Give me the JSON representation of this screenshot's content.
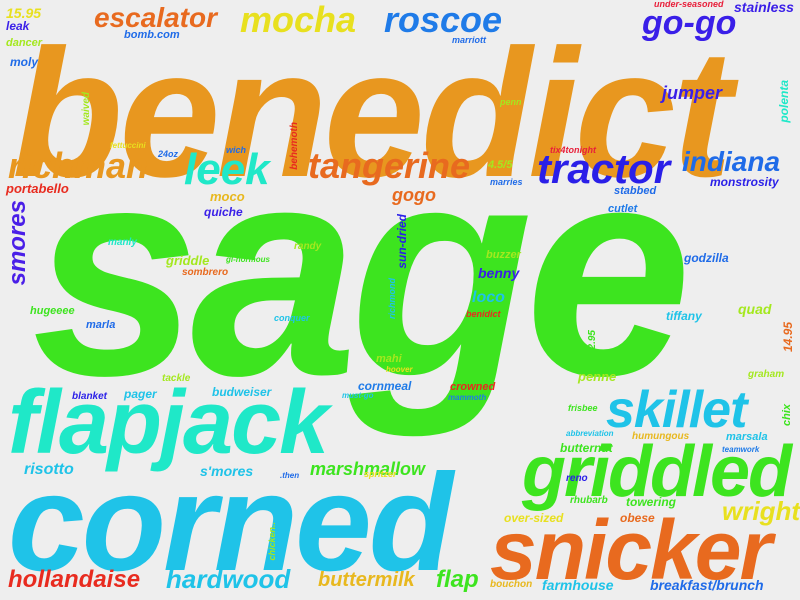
{
  "colors": {
    "background": "#eeeeee",
    "orange": "#e8971f",
    "green": "#3de41f",
    "cyan": "#1fc3e8",
    "teal": "#1fe8c8",
    "blue": "#1f6be8",
    "indigo": "#3a1fe8",
    "violet": "#6d1fe8",
    "red": "#e82b1f",
    "crimson": "#e81f3a",
    "dark_orange": "#e86a1f",
    "yellow": "#e8e01f",
    "lime": "#a4e81f",
    "gold": "#e8b81f"
  },
  "words": [
    {
      "text": "benedict",
      "color": "#e8971f"
    },
    {
      "text": "sage",
      "color": "#3de41f"
    },
    {
      "text": "corned",
      "color": "#1fc3e8"
    },
    {
      "text": "flapjack",
      "color": "#1fe8c8"
    },
    {
      "text": "snicker",
      "color": "#e86a1f"
    },
    {
      "text": "griddled",
      "color": "#3de41f"
    },
    {
      "text": "skillet",
      "color": "#1fc3e8"
    },
    {
      "text": "tractor",
      "color": "#2a1fe8"
    },
    {
      "text": "leek",
      "color": "#1fe8c8"
    },
    {
      "text": "tangerine",
      "color": "#e86a1f"
    },
    {
      "text": "richman",
      "color": "#e8971f"
    },
    {
      "text": "indiana",
      "color": "#1f6be8"
    },
    {
      "text": "mocha",
      "color": "#e8e01f"
    },
    {
      "text": "roscoe",
      "color": "#1f7be8"
    },
    {
      "text": "escalator",
      "color": "#e86a1f"
    },
    {
      "text": "go-go",
      "color": "#3a1fe8"
    },
    {
      "text": "hardwood",
      "color": "#1fc3e8"
    },
    {
      "text": "hollandaise",
      "color": "#e82b1f"
    },
    {
      "text": "buttermilk",
      "color": "#e8b81f"
    },
    {
      "text": "flap",
      "color": "#3de41f"
    },
    {
      "text": "wright",
      "color": "#e8e01f"
    },
    {
      "text": "marshmallow",
      "color": "#3de41f"
    },
    {
      "text": "smores",
      "color": "#4a1fe8"
    },
    {
      "text": "jumper",
      "color": "#3a1fe8"
    },
    {
      "text": "stainless",
      "color": "#3a1fe8"
    },
    {
      "text": "under-seasoned",
      "color": "#e81f3a"
    },
    {
      "text": "15.95",
      "color": "#e8e01f"
    },
    {
      "text": "leak",
      "color": "#3a1fe8"
    },
    {
      "text": "dancer",
      "color": "#a4e81f"
    },
    {
      "text": "moly",
      "color": "#1f6be8"
    },
    {
      "text": "bomb.com",
      "color": "#1f6be8"
    },
    {
      "text": "marriott",
      "color": "#1f6be8"
    },
    {
      "text": "waived",
      "color": "#a4e81f"
    },
    {
      "text": "penn",
      "color": "#a4e81f"
    },
    {
      "text": "polenta",
      "color": "#1fe8c8"
    },
    {
      "text": "fettuccini",
      "color": "#e8e01f"
    },
    {
      "text": "24oz",
      "color": "#1f6be8"
    },
    {
      "text": "wich",
      "color": "#1f6be8"
    },
    {
      "text": "behemoth",
      "color": "#e82b1f"
    },
    {
      "text": "4.5/5",
      "color": "#a4e81f"
    },
    {
      "text": "tix4tonight",
      "color": "#e81f3a"
    },
    {
      "text": "portabello",
      "color": "#e82b1f"
    },
    {
      "text": "marries",
      "color": "#1f6be8"
    },
    {
      "text": "monstrosity",
      "color": "#2a1fe8"
    },
    {
      "text": "gogo",
      "color": "#e86a1f"
    },
    {
      "text": "moco",
      "color": "#e8b81f"
    },
    {
      "text": "stabbed",
      "color": "#1f6be8"
    },
    {
      "text": "cutlet",
      "color": "#1f7be8"
    },
    {
      "text": "quiche",
      "color": "#3a1fe8"
    },
    {
      "text": "manly",
      "color": "#1fe8c8"
    },
    {
      "text": "gi-normous",
      "color": "#3de41f"
    },
    {
      "text": "randy",
      "color": "#a4e81f"
    },
    {
      "text": "sun-dried",
      "color": "#2a1fe8"
    },
    {
      "text": "buzzer",
      "color": "#a4e81f"
    },
    {
      "text": "godzilla",
      "color": "#1f6be8"
    },
    {
      "text": "griddle",
      "color": "#a4e81f"
    },
    {
      "text": "sombrero",
      "color": "#e86a1f"
    },
    {
      "text": "benny",
      "color": "#3a1fe8"
    },
    {
      "text": "richmond",
      "color": "#1fc3e8"
    },
    {
      "text": "loco",
      "color": "#1fc3e8"
    },
    {
      "text": "quad",
      "color": "#a4e81f"
    },
    {
      "text": "hugeeee",
      "color": "#3de41f"
    },
    {
      "text": "conquer",
      "color": "#1fc3e8"
    },
    {
      "text": "benidict",
      "color": "#e82b1f"
    },
    {
      "text": "tiffany",
      "color": "#1fc3e8"
    },
    {
      "text": "marla",
      "color": "#1f6be8"
    },
    {
      "text": "2.95",
      "color": "#3de41f"
    },
    {
      "text": "14.95",
      "color": "#e86a1f"
    },
    {
      "text": "mahi",
      "color": "#a4e81f"
    },
    {
      "text": "hoover",
      "color": "#e8e01f"
    },
    {
      "text": "penne",
      "color": "#a4e81f"
    },
    {
      "text": "graham",
      "color": "#a4e81f"
    },
    {
      "text": "tackle",
      "color": "#a4e81f"
    },
    {
      "text": "pager",
      "color": "#1fc3e8"
    },
    {
      "text": "budweiser",
      "color": "#1fc3e8"
    },
    {
      "text": "cornmeal",
      "color": "#1f7be8"
    },
    {
      "text": "crowned",
      "color": "#e82b1f"
    },
    {
      "text": "blanket",
      "color": "#2a1fe8"
    },
    {
      "text": "must-go",
      "color": "#1fc3e8"
    },
    {
      "text": "mammoth",
      "color": "#1f7be8"
    },
    {
      "text": "frisbee",
      "color": "#3de41f"
    },
    {
      "text": "chix",
      "color": "#3de41f"
    },
    {
      "text": "abbreviation",
      "color": "#1fc3e8"
    },
    {
      "text": "humungous",
      "color": "#e8b81f"
    },
    {
      "text": "marsala",
      "color": "#1fc3e8"
    },
    {
      "text": "teamwork",
      "color": "#1f7be8"
    },
    {
      "text": "butternut",
      "color": "#3de41f"
    },
    {
      "text": "risotto",
      "color": "#1fc3e8"
    },
    {
      "text": "s'mores",
      "color": "#1fc3e8"
    },
    {
      "text": "spritzer",
      "color": "#e8e01f"
    },
    {
      "text": ".then",
      "color": "#1f6be8"
    },
    {
      "text": "reno",
      "color": "#2a1fe8"
    },
    {
      "text": "rhubarb",
      "color": "#3de41f"
    },
    {
      "text": "towering",
      "color": "#3de41f"
    },
    {
      "text": "over-sized",
      "color": "#e8e01f"
    },
    {
      "text": "obese",
      "color": "#e86a1f"
    },
    {
      "text": "chicken..",
      "color": "#a4e81f"
    },
    {
      "text": "bouchon",
      "color": "#e8b81f"
    },
    {
      "text": "farmhouse",
      "color": "#1fc3e8"
    },
    {
      "text": "breakfast/brunch",
      "color": "#1f6be8"
    }
  ]
}
